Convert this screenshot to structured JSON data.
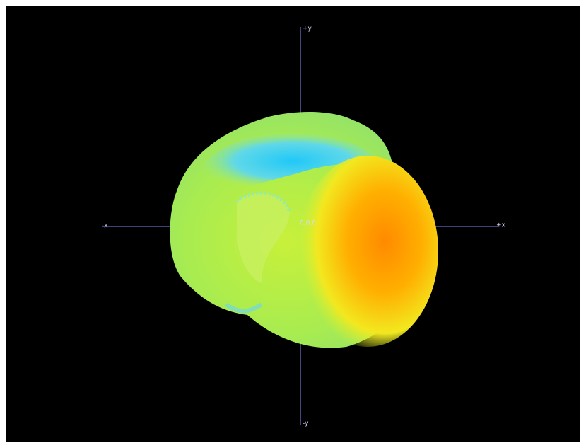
{
  "axes": {
    "top": "+y",
    "bottom": "-y",
    "left": "-x",
    "right": "+x",
    "origin": "0,0,0"
  }
}
